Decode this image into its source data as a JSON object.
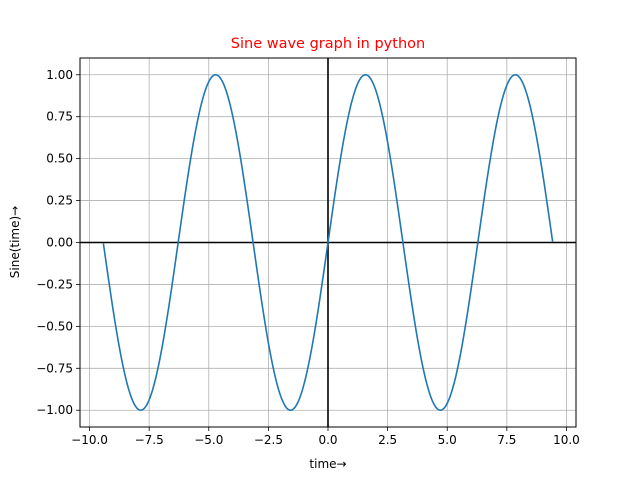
{
  "chart_data": {
    "type": "line",
    "title": "Sine wave graph in python",
    "title_color": "#ff0000",
    "xlabel": "time→",
    "ylabel": "Sine(time)→",
    "xlim": [
      -10.4,
      10.4
    ],
    "ylim": [
      -1.1,
      1.1
    ],
    "x_ticks": [
      -10,
      -7.5,
      -5,
      -2.5,
      0,
      2.5,
      5,
      7.5,
      10
    ],
    "x_tick_labels": [
      "−10.0",
      "−7.5",
      "−5.0",
      "−2.5",
      "0.0",
      "2.5",
      "5.0",
      "7.5",
      "10.0"
    ],
    "y_ticks": [
      -1,
      -0.75,
      -0.5,
      -0.25,
      0,
      0.25,
      0.5,
      0.75,
      1
    ],
    "y_tick_labels": [
      "−1.00",
      "−0.75",
      "−0.50",
      "−0.25",
      "0.00",
      "0.25",
      "0.50",
      "0.75",
      "1.00"
    ],
    "grid": true,
    "reference_lines": {
      "horizontal_at_y": 0,
      "vertical_at_x": 0,
      "color": "#000000"
    },
    "series": [
      {
        "function": "sin",
        "x_range": [
          -9.42,
          9.42
        ],
        "color": "#1f77b4"
      }
    ]
  }
}
